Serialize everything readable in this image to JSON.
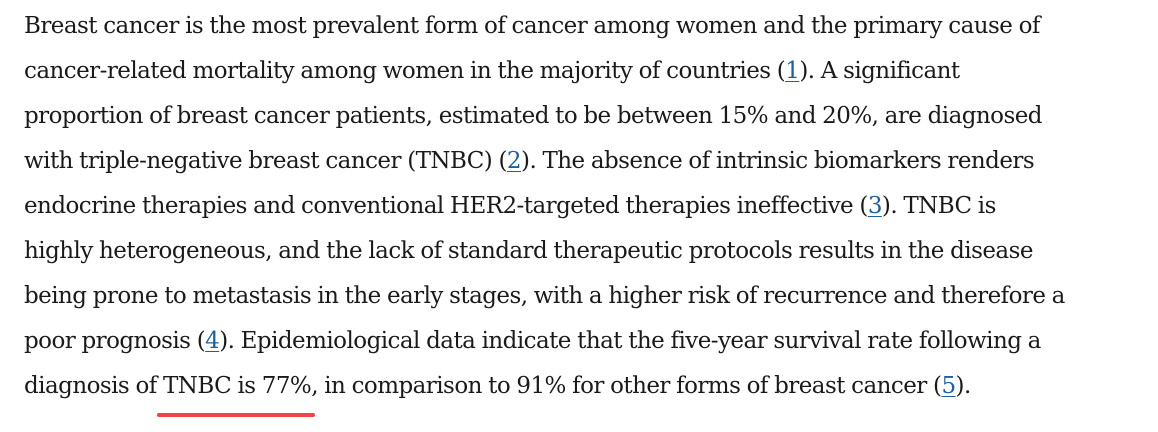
{
  "paragraph": {
    "lines": [
      {
        "parts": [
          "Breast cancer is the most prevalent form of cancer among women and the primary cause of"
        ]
      },
      {
        "parts": [
          "cancer-related mortality among women in the majority of countries (",
          "). A significant"
        ],
        "ref": "1"
      },
      {
        "parts": [
          "proportion of breast cancer patients, estimated to be between 15% and 20%, are diagnosed"
        ]
      },
      {
        "parts": [
          "with triple-negative breast cancer (TNBC) (",
          "). The absence of intrinsic biomarkers renders"
        ],
        "ref": "2"
      },
      {
        "parts": [
          "endocrine therapies and conventional HER2-targeted therapies ineffective (",
          "). TNBC is"
        ],
        "ref": "3"
      },
      {
        "parts": [
          "highly heterogeneous, and the lack of standard therapeutic protocols results in the disease"
        ]
      },
      {
        "parts": [
          "being prone to metastasis in the early stages, with a higher risk of recurrence and therefore a"
        ]
      },
      {
        "parts": [
          "poor prognosis (",
          "). Epidemiological data indicate that the five-year survival rate following a"
        ],
        "ref": "4"
      },
      {
        "parts": [
          "diagnosis of ",
          ", in comparison to 91% for other forms of breast cancer (",
          ")."
        ],
        "highlight": "TNBC is 77%",
        "ref": "5"
      }
    ]
  },
  "colors": {
    "text": "#1a1a1a",
    "link": "#1d5f9e",
    "highlight_underline": "#ef4444"
  }
}
